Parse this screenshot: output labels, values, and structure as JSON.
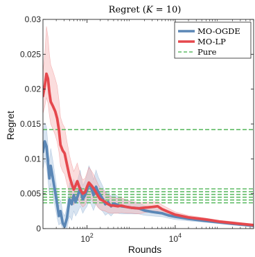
{
  "chart_data": {
    "type": "line",
    "title_prefix": "Regret (",
    "title_var": "K",
    "title_suffix": " = 10)",
    "xlabel": "Rounds",
    "ylabel": "Regret",
    "xscale": "log",
    "xlim": [
      10,
      600000
    ],
    "ylim": [
      0,
      0.03
    ],
    "grid": false,
    "legend_position": "top-right",
    "yticks": [
      {
        "value": 0,
        "label": "0"
      },
      {
        "value": 0.005,
        "label": "0.005"
      },
      {
        "value": 0.01,
        "label": "0.01"
      },
      {
        "value": 0.015,
        "label": "0.015"
      },
      {
        "value": 0.02,
        "label": "0.02"
      },
      {
        "value": 0.025,
        "label": "0.025"
      },
      {
        "value": 0.03,
        "label": "0.03"
      }
    ],
    "xticks": [
      {
        "value": 100,
        "base": "10",
        "exp": "2"
      },
      {
        "value": 10000,
        "base": "10",
        "exp": "4"
      }
    ],
    "series": [
      {
        "name": "MO-OGDE",
        "color": "#5b87b6",
        "band_color": "#a9c3e0",
        "x": [
          10,
          11,
          12,
          13,
          14,
          15,
          17,
          19,
          21,
          23,
          25,
          28,
          31,
          35,
          40,
          45,
          50,
          55,
          60,
          70,
          80,
          90,
          100,
          110,
          125,
          140,
          160,
          180,
          200,
          230,
          260,
          300,
          350,
          400,
          500,
          600,
          800,
          1000,
          1500,
          2000,
          3000,
          5000,
          7000,
          10000,
          20000,
          50000,
          100000,
          200000,
          600000
        ],
        "y": [
          0.011,
          0.0125,
          0.0118,
          0.0095,
          0.0072,
          0.009,
          0.007,
          0.0052,
          0.0035,
          0.0018,
          0.0025,
          0.0008,
          0.0003,
          0.0015,
          0.0042,
          0.0035,
          0.0048,
          0.0038,
          0.0045,
          0.0058,
          0.0042,
          0.0048,
          0.0055,
          0.0065,
          0.0058,
          0.0048,
          0.006,
          0.0052,
          0.0048,
          0.0042,
          0.0035,
          0.0038,
          0.0032,
          0.0036,
          0.0034,
          0.0032,
          0.0031,
          0.003,
          0.0029,
          0.0026,
          0.0024,
          0.0022,
          0.0019,
          0.0017,
          0.0014,
          0.0011,
          0.0009,
          0.0007,
          0.0004
        ],
        "lower": [
          0.0085,
          0.0098,
          0.009,
          0.007,
          0.0048,
          0.0065,
          0.0045,
          0.003,
          0.0015,
          0.0005,
          0.0008,
          0.0,
          0.0,
          0.0,
          0.0018,
          0.0012,
          0.0025,
          0.0018,
          0.0022,
          0.0032,
          0.0022,
          0.0028,
          0.0032,
          0.004,
          0.0034,
          0.0026,
          0.0036,
          0.003,
          0.0028,
          0.0024,
          0.0019,
          0.0022,
          0.0018,
          0.0022,
          0.0022,
          0.0021,
          0.0021,
          0.0021,
          0.0021,
          0.0019,
          0.0018,
          0.0017,
          0.0015,
          0.0013,
          0.0011,
          0.0009,
          0.0007,
          0.0005,
          0.0003
        ],
        "upper": [
          0.0135,
          0.0152,
          0.0146,
          0.012,
          0.0096,
          0.0115,
          0.0095,
          0.0074,
          0.0055,
          0.0031,
          0.0042,
          0.0024,
          0.0018,
          0.0032,
          0.0066,
          0.0058,
          0.0071,
          0.0058,
          0.0068,
          0.0084,
          0.0062,
          0.0068,
          0.0078,
          0.009,
          0.0082,
          0.007,
          0.0084,
          0.0074,
          0.0068,
          0.006,
          0.0051,
          0.0054,
          0.0046,
          0.005,
          0.0046,
          0.0043,
          0.0041,
          0.0039,
          0.0037,
          0.0033,
          0.003,
          0.0027,
          0.0023,
          0.0021,
          0.0017,
          0.0013,
          0.0011,
          0.0009,
          0.0005
        ]
      },
      {
        "name": "MO-LP",
        "color": "#e5484d",
        "band_color": "#f6b3b3",
        "x": [
          10,
          11,
          12,
          13,
          14,
          15,
          17,
          19,
          21,
          23,
          25,
          28,
          31,
          35,
          40,
          45,
          50,
          55,
          60,
          70,
          80,
          90,
          100,
          110,
          125,
          140,
          160,
          180,
          200,
          230,
          260,
          300,
          350,
          400,
          500,
          600,
          800,
          1000,
          1500,
          2000,
          3000,
          4000,
          5000,
          7000,
          10000,
          20000,
          50000,
          100000,
          200000,
          600000
        ],
        "y": [
          0.019,
          0.0205,
          0.0222,
          0.0215,
          0.0195,
          0.0182,
          0.0175,
          0.0168,
          0.0158,
          0.0142,
          0.012,
          0.0112,
          0.0108,
          0.0092,
          0.0075,
          0.0064,
          0.0056,
          0.0062,
          0.0068,
          0.0056,
          0.005,
          0.0052,
          0.006,
          0.0066,
          0.0062,
          0.0058,
          0.0052,
          0.0046,
          0.0042,
          0.004,
          0.0038,
          0.0035,
          0.0033,
          0.0033,
          0.0032,
          0.0033,
          0.0031,
          0.003,
          0.0029,
          0.003,
          0.0031,
          0.0032,
          0.0028,
          0.0024,
          0.002,
          0.0016,
          0.0013,
          0.001,
          0.0008,
          0.0005
        ],
        "lower": [
          0.0165,
          0.0175,
          0.0188,
          0.018,
          0.0162,
          0.015,
          0.0142,
          0.0134,
          0.0124,
          0.011,
          0.009,
          0.0082,
          0.0078,
          0.0064,
          0.005,
          0.004,
          0.0034,
          0.004,
          0.0045,
          0.0036,
          0.0031,
          0.0034,
          0.004,
          0.0045,
          0.0042,
          0.0038,
          0.0034,
          0.003,
          0.0027,
          0.0026,
          0.0025,
          0.0023,
          0.0022,
          0.0022,
          0.0022,
          0.0023,
          0.0022,
          0.0022,
          0.0021,
          0.0023,
          0.0024,
          0.0025,
          0.0022,
          0.0019,
          0.0016,
          0.0013,
          0.0011,
          0.0008,
          0.0006,
          0.0004
        ],
        "upper": [
          0.0225,
          0.025,
          0.029,
          0.0275,
          0.025,
          0.0235,
          0.0225,
          0.0215,
          0.0205,
          0.0185,
          0.016,
          0.015,
          0.0145,
          0.0125,
          0.0105,
          0.0092,
          0.0082,
          0.0088,
          0.0094,
          0.0078,
          0.007,
          0.0072,
          0.008,
          0.0088,
          0.0083,
          0.0078,
          0.007,
          0.0063,
          0.0058,
          0.0055,
          0.0052,
          0.0048,
          0.0045,
          0.0045,
          0.0043,
          0.0044,
          0.0041,
          0.0039,
          0.0037,
          0.0038,
          0.0038,
          0.0039,
          0.0034,
          0.0029,
          0.0024,
          0.0019,
          0.0015,
          0.0012,
          0.001,
          0.0006
        ]
      },
      {
        "name": "Pure",
        "color": "#5dbb63",
        "style": "dashed",
        "levels": [
          0.0142,
          0.0057,
          0.0053,
          0.0049,
          0.0045,
          0.0041,
          0.0037
        ]
      }
    ]
  }
}
